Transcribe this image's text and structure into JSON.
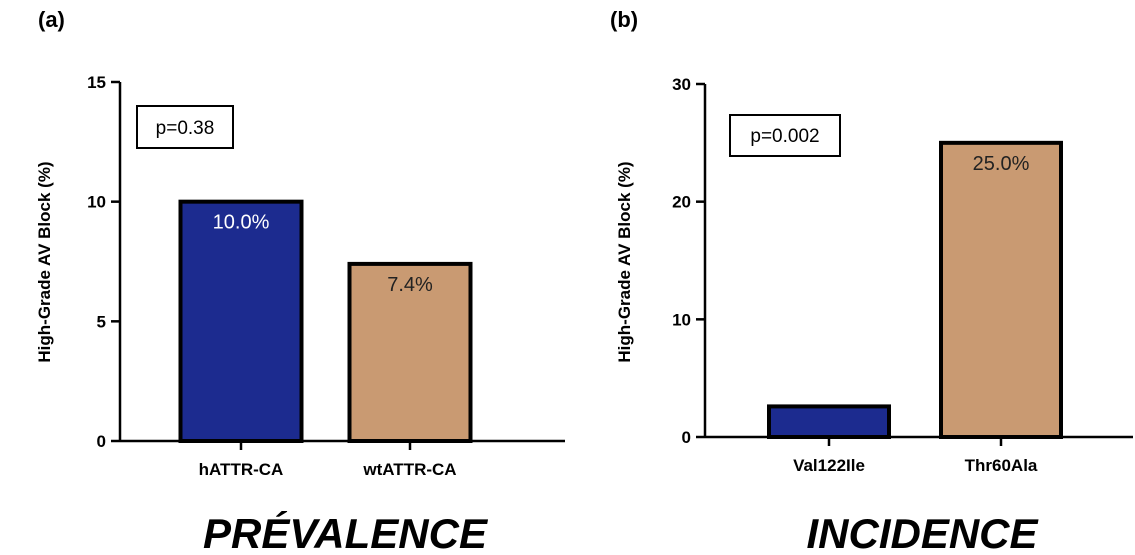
{
  "chart_data": [
    {
      "type": "bar",
      "panel_label": "(a)",
      "categories": [
        "hATTR-CA",
        "wtATTR-CA"
      ],
      "values": [
        10.0,
        7.4
      ],
      "bar_labels": [
        "10.0%",
        "7.4%"
      ],
      "bar_colors": [
        "#1c2b8f",
        "#c99a72"
      ],
      "bar_label_colors": [
        "#ffffff",
        "#222222"
      ],
      "ylabel": "High-Grade AV Block (%)",
      "xlabel": "",
      "ylim": [
        0,
        15
      ],
      "yticks": [
        0,
        5,
        10,
        15
      ],
      "annotation": "p=0.38",
      "footer": "PRÉVALENCE"
    },
    {
      "type": "bar",
      "panel_label": "(b)",
      "categories": [
        "Val122Ile",
        "Thr60Ala"
      ],
      "values": [
        2.6,
        25.0
      ],
      "bar_labels": [
        "",
        "25.0%"
      ],
      "bar_colors": [
        "#1c2b8f",
        "#c99a72"
      ],
      "bar_label_colors": [
        "#ffffff",
        "#222222"
      ],
      "ylabel": "High-Grade AV Block (%)",
      "xlabel": "",
      "ylim": [
        0,
        30
      ],
      "yticks": [
        0,
        10,
        20,
        30
      ],
      "annotation": "p=0.002",
      "footer": "INCIDENCE"
    }
  ]
}
